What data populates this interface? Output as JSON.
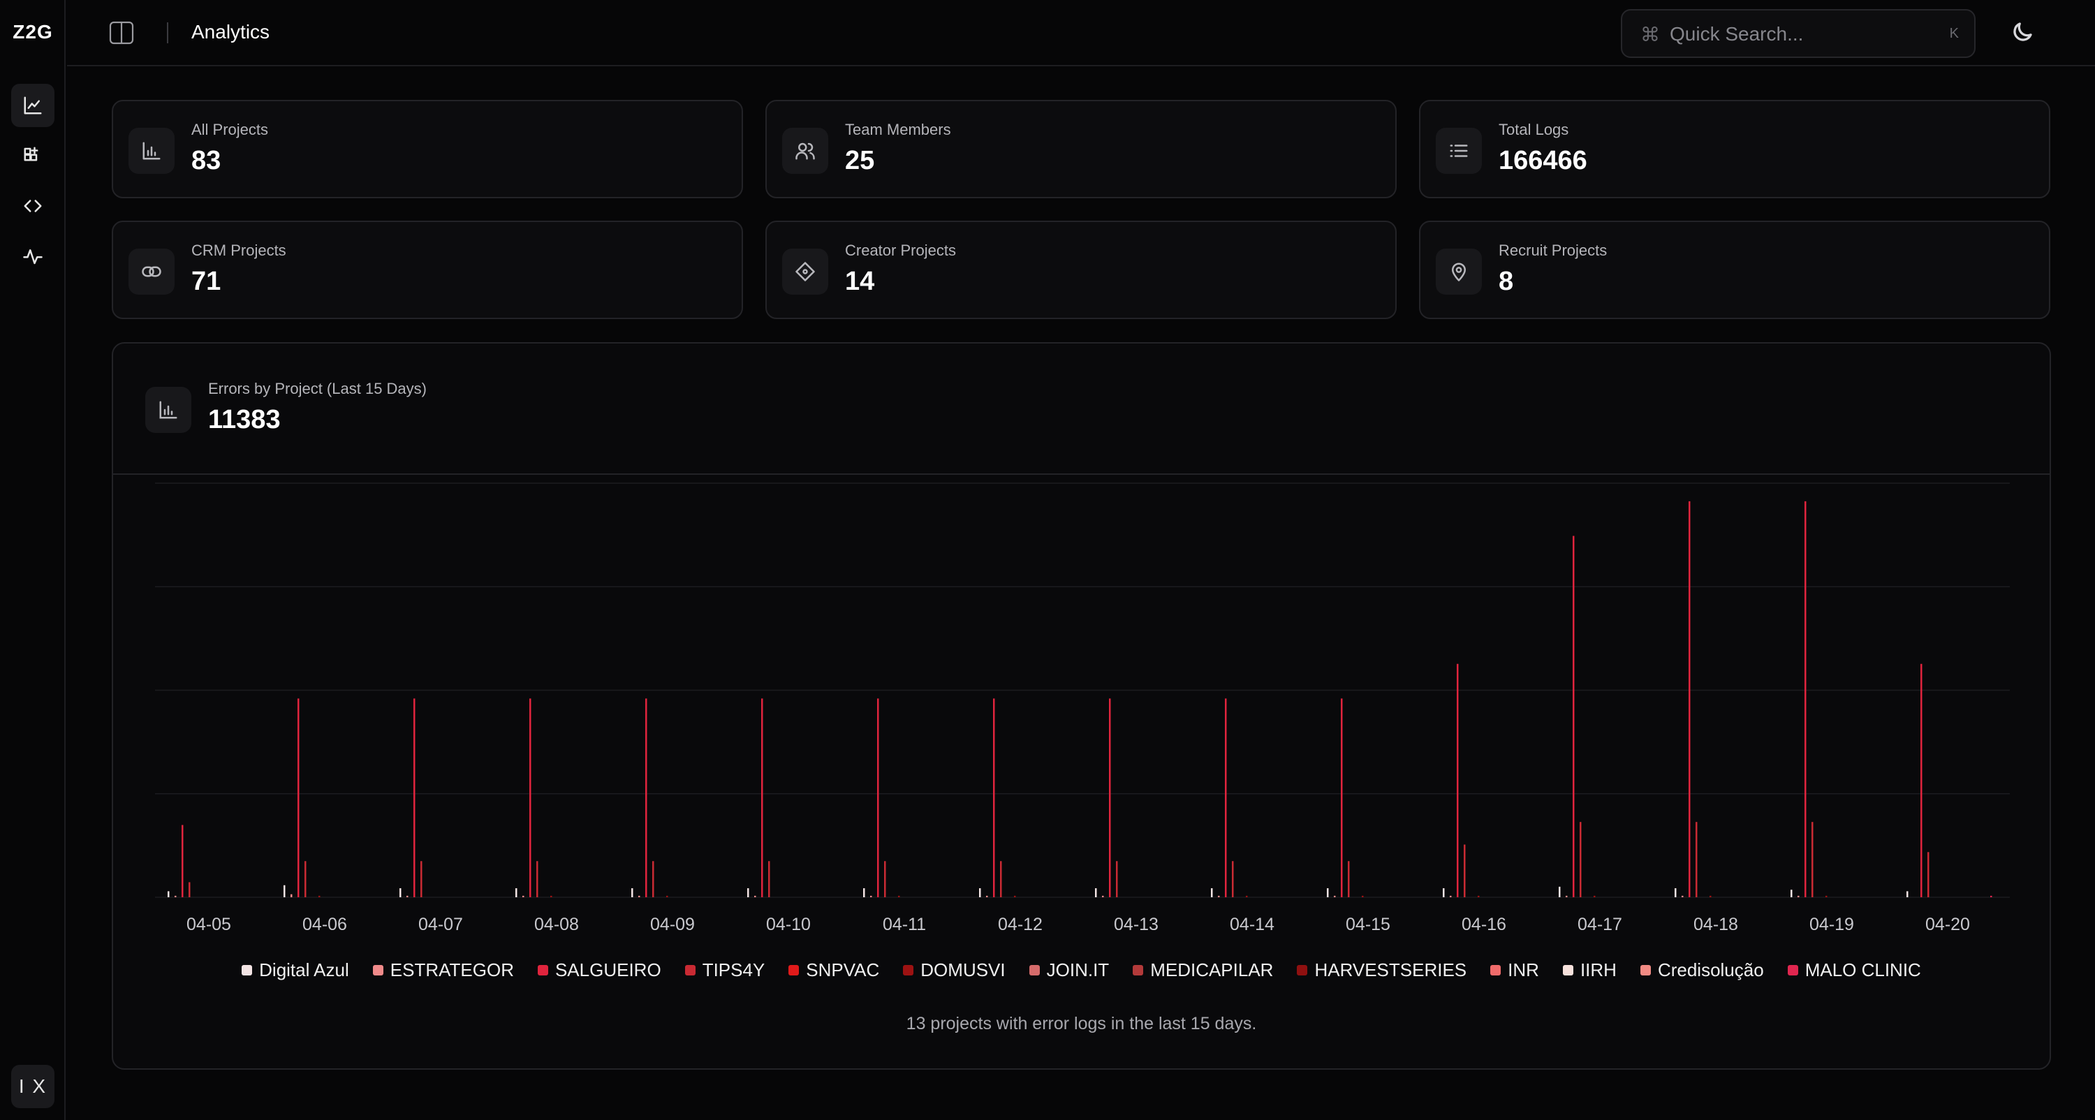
{
  "sidebar": {
    "logo": "Z2G",
    "items": [
      {
        "name": "analytics",
        "icon": "line-chart-icon",
        "active": true
      },
      {
        "name": "apps",
        "icon": "grid-plus-icon",
        "active": false
      },
      {
        "name": "code",
        "icon": "code-icon",
        "active": false
      },
      {
        "name": "activity",
        "icon": "activity-icon",
        "active": false
      }
    ],
    "footer_label": "I X"
  },
  "header": {
    "title": "Analytics",
    "search": {
      "shortcut_symbol": "⌘",
      "placeholder": "Quick Search...",
      "key": "K"
    }
  },
  "stats": [
    {
      "label": "All Projects",
      "value": "83",
      "icon": "bar-chart-icon"
    },
    {
      "label": "Team Members",
      "value": "25",
      "icon": "users-icon"
    },
    {
      "label": "Total Logs",
      "value": "166466",
      "icon": "list-icon"
    },
    {
      "label": "CRM Projects",
      "value": "71",
      "icon": "link-icon"
    },
    {
      "label": "Creator Projects",
      "value": "14",
      "icon": "diamond-icon"
    },
    {
      "label": "Recruit Projects",
      "value": "8",
      "icon": "location-icon"
    }
  ],
  "errors_card": {
    "label": "Errors by Project (Last 15 Days)",
    "value": "11383",
    "footer": "13 projects with error logs in the last 15 days."
  },
  "colors": {
    "background": "#060607",
    "card": "#0c0c0e",
    "border": "#232327",
    "main_bar": "#b01b35"
  },
  "chart_data": {
    "type": "bar",
    "categories": [
      "04-05",
      "04-06",
      "04-07",
      "04-08",
      "04-09",
      "04-10",
      "04-11",
      "04-12",
      "04-13",
      "04-14",
      "04-15",
      "04-16",
      "04-17",
      "04-18",
      "04-19",
      "04-20"
    ],
    "series": [
      {
        "name": "Digital Azul",
        "color": "#f3e4e4",
        "values": [
          4,
          8,
          6,
          6,
          6,
          6,
          6,
          6,
          6,
          6,
          6,
          6,
          7,
          6,
          5,
          4
        ]
      },
      {
        "name": "ESTRATEGOR",
        "color": "#f08a8a",
        "values": [
          1,
          2,
          1,
          1,
          1,
          1,
          1,
          1,
          1,
          1,
          1,
          1,
          1,
          1,
          1,
          0
        ]
      },
      {
        "name": "SALGUEIRO",
        "color": "#e0243d",
        "values": [
          48,
          132,
          132,
          132,
          132,
          132,
          132,
          132,
          132,
          132,
          132,
          155,
          240,
          263,
          263,
          155
        ]
      },
      {
        "name": "TIPS4Y",
        "color": "#c92a33",
        "values": [
          10,
          24,
          24,
          24,
          24,
          24,
          24,
          24,
          24,
          24,
          24,
          35,
          50,
          50,
          50,
          30
        ]
      },
      {
        "name": "SNPVAC",
        "color": "#e01a1a",
        "values": [
          0,
          0,
          0,
          0,
          0,
          0,
          0,
          0,
          0,
          0,
          0,
          0,
          0,
          0,
          0,
          0
        ]
      },
      {
        "name": "DOMUSVI",
        "color": "#9d1212",
        "values": [
          0,
          1,
          0,
          1,
          1,
          0,
          1,
          1,
          0,
          1,
          1,
          1,
          1,
          1,
          1,
          0
        ]
      },
      {
        "name": "JOIN.IT",
        "color": "#d56b6b",
        "values": [
          0,
          0,
          0,
          0,
          0,
          0,
          0,
          0,
          0,
          0,
          0,
          0,
          0,
          0,
          0,
          0
        ]
      },
      {
        "name": "MEDICAPILAR",
        "color": "#b33a3a",
        "values": [
          0,
          0,
          0,
          0,
          0,
          0,
          0,
          0,
          0,
          0,
          0,
          0,
          0,
          0,
          0,
          0
        ]
      },
      {
        "name": "HARVESTSERIES",
        "color": "#8f1010",
        "values": [
          0,
          0,
          0,
          0,
          0,
          0,
          0,
          0,
          0,
          0,
          0,
          0,
          0,
          0,
          0,
          0
        ]
      },
      {
        "name": "INR",
        "color": "#f06b6b",
        "values": [
          0,
          0,
          0,
          0,
          0,
          0,
          0,
          0,
          0,
          0,
          0,
          0,
          0,
          0,
          0,
          0
        ]
      },
      {
        "name": "IIRH",
        "color": "#f7e1dc",
        "values": [
          0,
          0,
          0,
          0,
          0,
          0,
          0,
          0,
          0,
          0,
          0,
          0,
          0,
          0,
          0,
          0
        ]
      },
      {
        "name": "Credisolução",
        "color": "#f28b84",
        "values": [
          0,
          0,
          0,
          0,
          0,
          0,
          0,
          0,
          0,
          0,
          0,
          0,
          0,
          0,
          0,
          0
        ]
      },
      {
        "name": "MALO CLINIC",
        "color": "#e0264f",
        "values": [
          0,
          0,
          0,
          0,
          0,
          0,
          0,
          0,
          0,
          0,
          0,
          0,
          0,
          0,
          0,
          1
        ]
      }
    ],
    "ylim": [
      0,
      275
    ],
    "grid": true,
    "legend": "bottom",
    "xlabel": "",
    "ylabel": ""
  }
}
